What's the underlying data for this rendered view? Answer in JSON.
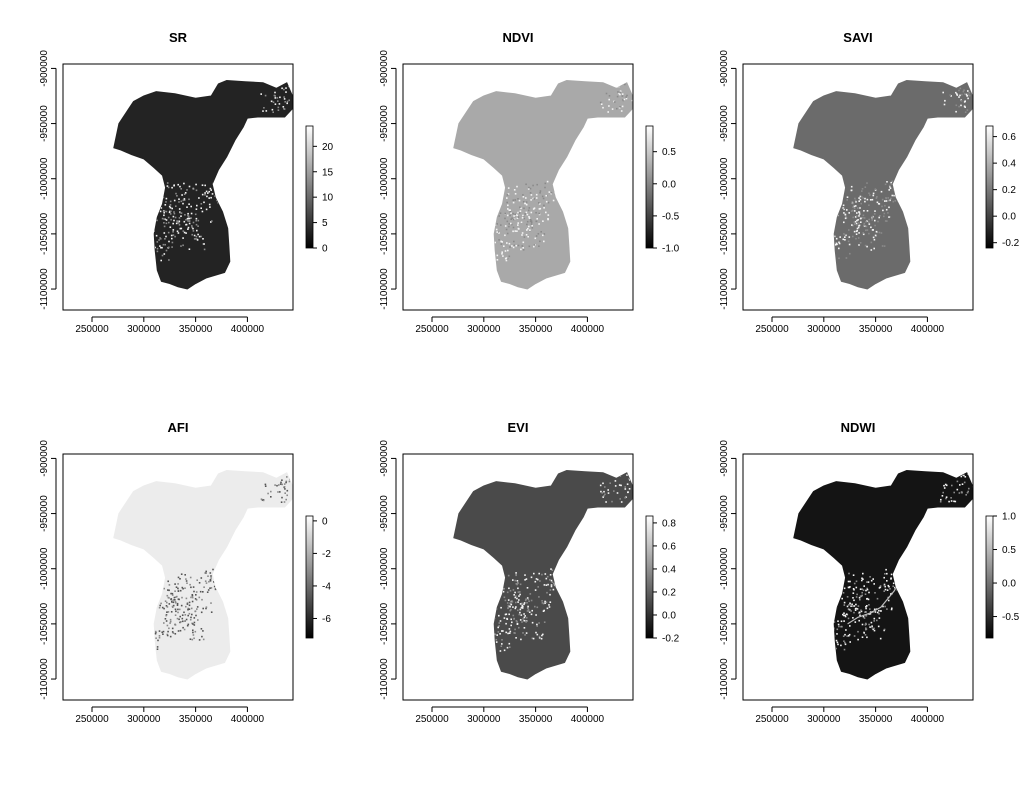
{
  "chart_data": [
    {
      "type": "heatmap",
      "title": "SR",
      "xticks": [
        250000,
        300000,
        350000,
        400000
      ],
      "yticks": [
        -900000,
        -950000,
        -1000000,
        -1050000,
        -1100000
      ],
      "xlim": [
        222000,
        444000
      ],
      "ylim": [
        -1119000,
        -896000
      ],
      "legend_ticks": [
        0,
        5,
        10,
        15,
        20
      ],
      "legend_range": [
        0,
        24
      ],
      "fill_base": "#232323",
      "river": false,
      "colors": [
        "#000000",
        "#ffffff"
      ]
    },
    {
      "type": "heatmap",
      "title": "NDVI",
      "xticks": [
        250000,
        300000,
        350000,
        400000
      ],
      "yticks": [
        -900000,
        -950000,
        -1000000,
        -1050000,
        -1100000
      ],
      "xlim": [
        222000,
        444000
      ],
      "ylim": [
        -1119000,
        -896000
      ],
      "legend_ticks": [
        0.5,
        0.0,
        -0.5,
        -1.0
      ],
      "legend_tick_labels": [
        "0.5",
        "0.0",
        "-0.5",
        "-1.0"
      ],
      "legend_range": [
        -1.0,
        0.9
      ],
      "fill_base": "#a9a9a9",
      "river": false,
      "colors": [
        "#000000",
        "#ffffff"
      ]
    },
    {
      "type": "heatmap",
      "title": "SAVI",
      "xticks": [
        250000,
        300000,
        350000,
        400000
      ],
      "yticks": [
        -900000,
        -950000,
        -1000000,
        -1050000,
        -1100000
      ],
      "xlim": [
        222000,
        444000
      ],
      "ylim": [
        -1119000,
        -896000
      ],
      "legend_ticks": [
        0.6,
        0.4,
        0.2,
        0.0,
        -0.2
      ],
      "legend_tick_labels": [
        "0.6",
        "0.4",
        "0.2",
        "0.0",
        "-0.2"
      ],
      "legend_range": [
        -0.24,
        0.68
      ],
      "fill_base": "#6b6b6b",
      "river": false,
      "colors": [
        "#000000",
        "#ffffff"
      ]
    },
    {
      "type": "heatmap",
      "title": "AFI",
      "xticks": [
        250000,
        300000,
        350000,
        400000
      ],
      "yticks": [
        -900000,
        -950000,
        -1000000,
        -1050000,
        -1100000
      ],
      "xlim": [
        222000,
        444000
      ],
      "ylim": [
        -1119000,
        -896000
      ],
      "legend_ticks": [
        0,
        -2,
        -4,
        -6
      ],
      "legend_range": [
        -7.2,
        0.3
      ],
      "fill_base": "#ececec",
      "river": false,
      "colors": [
        "#000000",
        "#ffffff"
      ]
    },
    {
      "type": "heatmap",
      "title": "EVI",
      "xticks": [
        250000,
        300000,
        350000,
        400000
      ],
      "yticks": [
        -900000,
        -950000,
        -1000000,
        -1050000,
        -1100000
      ],
      "xlim": [
        222000,
        444000
      ],
      "ylim": [
        -1119000,
        -896000
      ],
      "legend_ticks": [
        0.8,
        0.6,
        0.4,
        0.2,
        0.0,
        -0.2
      ],
      "legend_tick_labels": [
        "0.8",
        "0.6",
        "0.4",
        "0.2",
        "0.0",
        "-0.2"
      ],
      "legend_range": [
        -0.2,
        0.86
      ],
      "fill_base": "#4a4a4a",
      "river": false,
      "colors": [
        "#000000",
        "#ffffff"
      ]
    },
    {
      "type": "heatmap",
      "title": "NDWI",
      "xticks": [
        250000,
        300000,
        350000,
        400000
      ],
      "yticks": [
        -900000,
        -950000,
        -1000000,
        -1050000,
        -1100000
      ],
      "xlim": [
        222000,
        444000
      ],
      "ylim": [
        -1119000,
        -896000
      ],
      "legend_ticks": [
        1.0,
        0.5,
        0.0,
        -0.5
      ],
      "legend_tick_labels": [
        "1.0",
        "0.5",
        "0.0",
        "-0.5"
      ],
      "legend_range": [
        -0.82,
        1.0
      ],
      "fill_base": "#141414",
      "river": true,
      "colors": [
        "#000000",
        "#ffffff"
      ]
    }
  ]
}
